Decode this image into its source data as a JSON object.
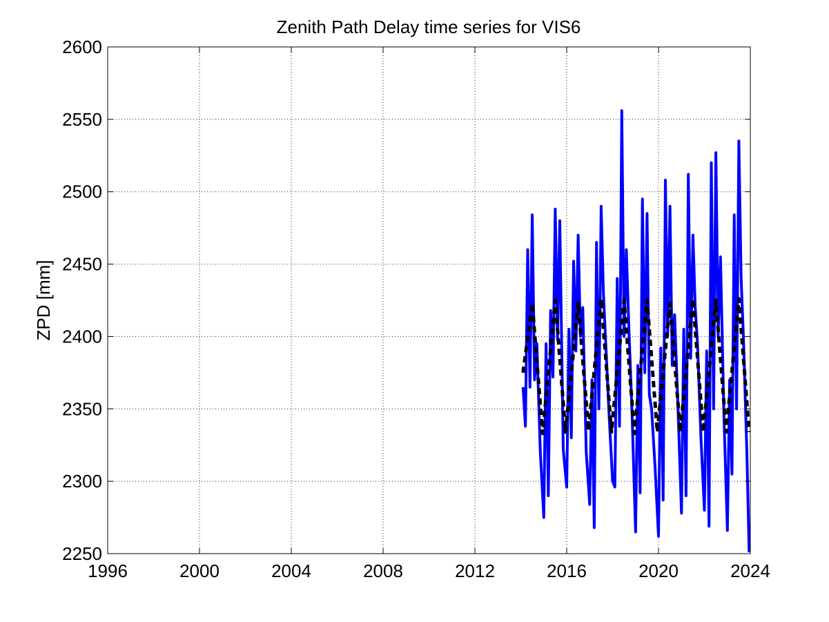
{
  "chart_data": {
    "type": "line",
    "title": "Zenith Path Delay time series for VIS6",
    "xlabel": "",
    "ylabel": "ZPD [mm]",
    "xlim": [
      1996,
      2024
    ],
    "ylim": [
      2250,
      2600
    ],
    "xticks": [
      "1996",
      "2000",
      "2004",
      "2008",
      "2012",
      "2016",
      "2020",
      "2024"
    ],
    "yticks": [
      "2250",
      "2300",
      "2350",
      "2400",
      "2450",
      "2500",
      "2550",
      "2600"
    ],
    "grid": true,
    "series": [
      {
        "style": "solid",
        "color": "#0000ff",
        "x": [
          2014.1,
          2014.2,
          2014.3,
          2014.4,
          2014.5,
          2014.6,
          2014.7,
          2014.85,
          2015.0,
          2015.1,
          2015.2,
          2015.3,
          2015.4,
          2015.5,
          2015.6,
          2015.7,
          2015.85,
          2016.0,
          2016.1,
          2016.2,
          2016.3,
          2016.4,
          2016.5,
          2016.6,
          2016.7,
          2016.85,
          2017.0,
          2017.1,
          2017.2,
          2017.3,
          2017.4,
          2017.5,
          2017.6,
          2017.7,
          2017.85,
          2018.0,
          2018.1,
          2018.2,
          2018.3,
          2018.4,
          2018.5,
          2018.6,
          2018.7,
          2018.85,
          2019.0,
          2019.1,
          2019.2,
          2019.3,
          2019.4,
          2019.5,
          2019.6,
          2019.7,
          2019.85,
          2020.0,
          2020.1,
          2020.2,
          2020.3,
          2020.4,
          2020.5,
          2020.6,
          2020.7,
          2020.85,
          2021.0,
          2021.1,
          2021.2,
          2021.3,
          2021.4,
          2021.5,
          2021.6,
          2021.7,
          2021.85,
          2022.0,
          2022.1,
          2022.2,
          2022.3,
          2022.4,
          2022.5,
          2022.6,
          2022.7,
          2022.85,
          2023.0,
          2023.1,
          2023.2,
          2023.3,
          2023.4,
          2023.5,
          2023.6,
          2023.7,
          2023.85,
          2023.95
        ],
        "y": [
          2365,
          2338,
          2460,
          2365,
          2484,
          2370,
          2395,
          2320,
          2275,
          2395,
          2290,
          2418,
          2372,
          2488,
          2398,
          2480,
          2322,
          2296,
          2405,
          2330,
          2452,
          2390,
          2470,
          2400,
          2420,
          2320,
          2284,
          2370,
          2268,
          2465,
          2350,
          2490,
          2430,
          2396,
          2345,
          2300,
          2296,
          2440,
          2338,
          2556,
          2400,
          2460,
          2410,
          2345,
          2265,
          2380,
          2292,
          2495,
          2375,
          2485,
          2360,
          2350,
          2310,
          2262,
          2392,
          2287,
          2508,
          2400,
          2490,
          2380,
          2415,
          2350,
          2278,
          2405,
          2290,
          2512,
          2385,
          2470,
          2420,
          2395,
          2330,
          2280,
          2390,
          2269,
          2520,
          2350,
          2527,
          2400,
          2455,
          2345,
          2266,
          2370,
          2305,
          2484,
          2350,
          2535,
          2440,
          2400,
          2320,
          2251
        ]
      },
      {
        "style": "dashed",
        "color": "#000000",
        "x": [
          2014.1,
          2014.5,
          2014.95,
          2015.5,
          2015.95,
          2016.5,
          2016.95,
          2017.5,
          2017.95,
          2018.5,
          2018.95,
          2019.5,
          2019.95,
          2020.5,
          2020.95,
          2021.5,
          2021.95,
          2022.5,
          2022.95,
          2023.5,
          2023.95
        ],
        "y": [
          2375,
          2423,
          2333,
          2425,
          2334,
          2423,
          2335,
          2426,
          2334,
          2425,
          2333,
          2425,
          2334,
          2423,
          2334,
          2426,
          2334,
          2425,
          2334,
          2426,
          2334
        ]
      }
    ]
  }
}
